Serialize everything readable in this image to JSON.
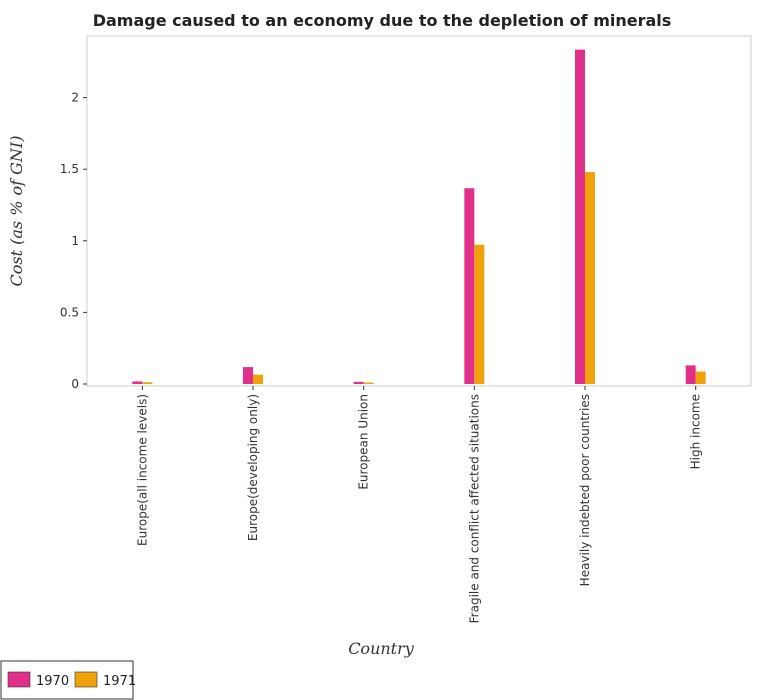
{
  "chart_data": {
    "type": "bar",
    "title": "Damage caused to an economy due to the depletion of minerals",
    "xlabel": "Country",
    "ylabel": "Cost (as % of GNI)",
    "ylim": [
      0,
      2.45
    ],
    "yticks": [
      0,
      0.5,
      1,
      1.5,
      2
    ],
    "ytick_labels": [
      "0",
      "0.5",
      "1",
      "1.5",
      "2"
    ],
    "categories": [
      "Europe(all income levels)",
      "Europe(developing only)",
      "European Union",
      "Fragile and conflict affected situations",
      "Heavily indebted poor countries",
      "High income"
    ],
    "series": [
      {
        "name": "1970",
        "color": "#e0308a",
        "values": [
          0.018,
          0.118,
          0.015,
          1.367,
          2.335,
          0.13
        ]
      },
      {
        "name": "1971",
        "color": "#f0a20a",
        "values": [
          0.012,
          0.065,
          0.01,
          0.973,
          1.48,
          0.087
        ]
      }
    ],
    "grid": false,
    "legend_position": "bottom-left"
  }
}
